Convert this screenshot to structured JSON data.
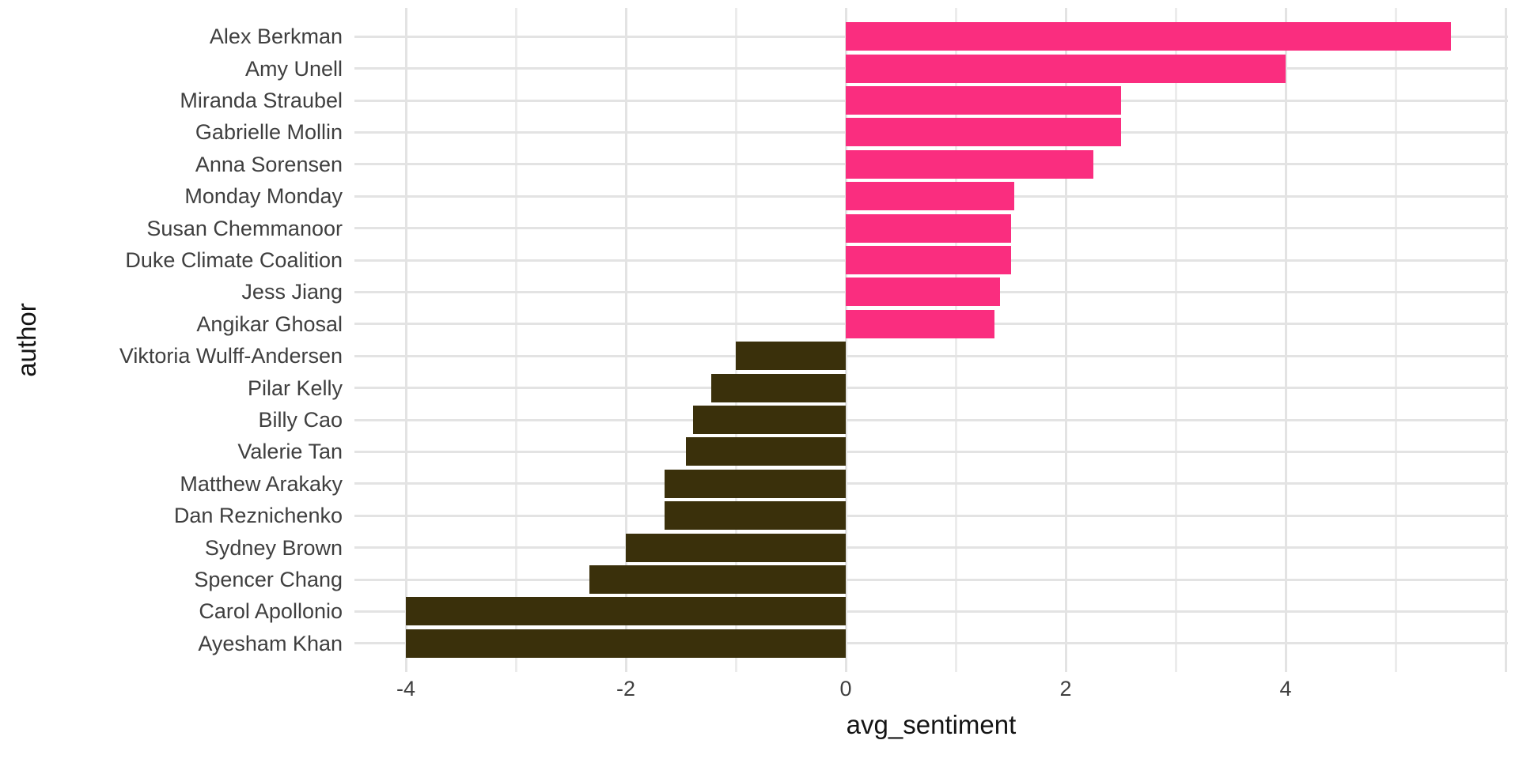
{
  "chart_data": {
    "type": "bar",
    "orientation": "horizontal",
    "xlabel": "avg_sentiment",
    "ylabel": "author",
    "categories": [
      "Alex Berkman",
      "Amy Unell",
      "Miranda Straubel",
      "Gabrielle Mollin",
      "Anna Sorensen",
      "Monday Monday",
      "Susan Chemmanoor",
      "Duke Climate Coalition",
      "Jess Jiang",
      "Angikar Ghosal",
      "Viktoria Wulff-Andersen",
      "Pilar Kelly",
      "Billy Cao",
      "Valerie Tan",
      "Matthew Arakaky",
      "Dan Reznichenko",
      "Sydney Brown",
      "Spencer Chang",
      "Carol Apollonio",
      "Ayesham Khan"
    ],
    "values": [
      5.5,
      4.0,
      2.5,
      2.5,
      2.25,
      1.53,
      1.5,
      1.5,
      1.4,
      1.35,
      -1.0,
      -1.22,
      -1.39,
      -1.45,
      -1.65,
      -1.65,
      -2.0,
      -2.33,
      -4.0,
      -4.0
    ],
    "x_ticks": [
      -4,
      -2,
      0,
      2,
      4
    ],
    "x_tick_labels": [
      "-4",
      "-2",
      "0",
      "2",
      "4"
    ],
    "x_minor_gridlines": [
      -3,
      -1,
      1,
      3,
      5
    ],
    "xlim": [
      -4.47,
      6.02
    ],
    "grid": true,
    "legend": "none",
    "positive_color": "#FA2D7F",
    "negative_color": "#3A300B",
    "gridline_color": "#E7E7E7",
    "background_color": "#FFFFFF",
    "tick_text_color": "#3F3F3F",
    "title_text_color": "#141414"
  }
}
